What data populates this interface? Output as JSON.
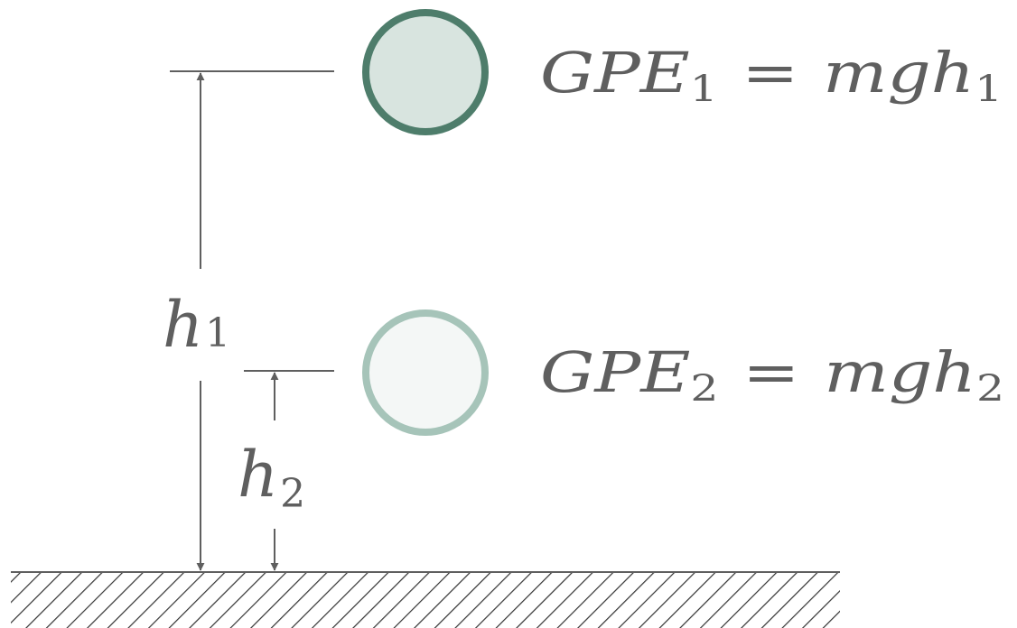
{
  "labels": {
    "h1": {
      "main": "h",
      "sub": "1"
    },
    "h2": {
      "main": "h",
      "sub": "2"
    }
  },
  "equations": {
    "gpe1": {
      "lhs": "GPE",
      "lhs_sub": "1",
      "eq": "=",
      "rhs": "mgh",
      "rhs_sub": "1"
    },
    "gpe2": {
      "lhs": "GPE",
      "lhs_sub": "2",
      "eq": "=",
      "rhs": "mgh",
      "rhs_sub": "2"
    }
  },
  "colors": {
    "ink": "#5f5f5f",
    "ball_high_stroke": "#4e7d6b",
    "ball_high_fill": "#d8e4df",
    "ball_low_stroke": "#a6c4b9",
    "ball_low_fill": "#f4f7f6"
  }
}
